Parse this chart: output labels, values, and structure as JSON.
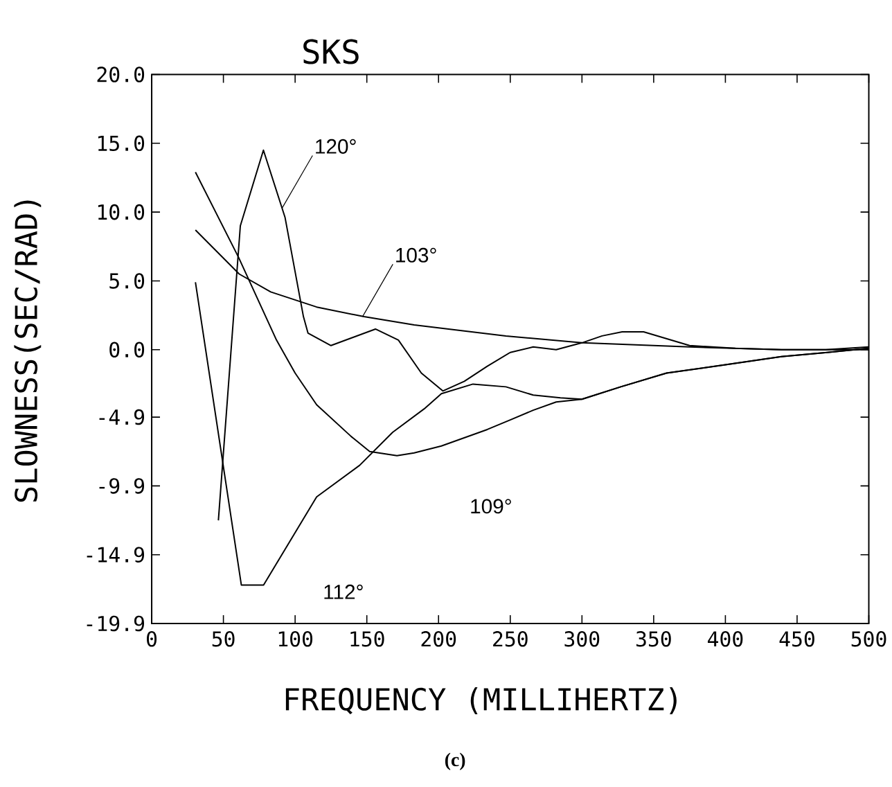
{
  "chart_data": {
    "type": "line",
    "title": "SKS",
    "xlabel": "FREQUENCY  (MILLIHERTZ)",
    "ylabel": "SLOWNESS(SEC/RAD)",
    "xlim": [
      0,
      500
    ],
    "ylim": [
      -19.9,
      20
    ],
    "xticks": [
      0,
      50,
      100,
      150,
      200,
      250,
      300,
      350,
      400,
      450,
      500
    ],
    "yticks": [
      {
        "value": 20,
        "label": "20.0"
      },
      {
        "value": 15,
        "label": "15.0"
      },
      {
        "value": 10,
        "label": "10.0"
      },
      {
        "value": 5,
        "label": "5.0"
      },
      {
        "value": 0,
        "label": "0.0"
      },
      {
        "value": -4.9,
        "label": "-4.9"
      },
      {
        "value": -9.9,
        "label": "-9.9"
      },
      {
        "value": -14.9,
        "label": "-14.9"
      },
      {
        "value": -19.9,
        "label": "-19.9"
      }
    ],
    "grid": false,
    "marker": "none",
    "line_style": "solid",
    "series": [
      {
        "color": "#000000",
        "x": [
          46.5,
          61.8,
          77.9,
          93,
          105.8,
          109,
          125,
          156,
          172,
          188,
          203,
          218,
          234,
          250,
          266,
          282,
          300,
          314,
          328,
          343,
          375,
          407,
          439,
          470,
          500
        ],
        "values": [
          -12.4,
          9.0,
          14.5,
          9.6,
          2.4,
          1.2,
          0.3,
          1.5,
          0.7,
          -1.7,
          -3.0,
          -2.3,
          -1.2,
          -0.2,
          0.2,
          0.0,
          0.5,
          1.0,
          1.3,
          1.3,
          0.3,
          0.1,
          0.0,
          0.0,
          0.2
        ]
      },
      {
        "color": "#000000",
        "x": [
          30.5,
          61,
          83,
          115,
          148,
          183,
          247,
          300,
          375,
          439,
          500
        ],
        "values": [
          8.7,
          5.5,
          4.2,
          3.1,
          2.4,
          1.8,
          1.0,
          0.5,
          0.2,
          0.0,
          0.0
        ]
      },
      {
        "color": "#000000",
        "x": [
          30.5,
          60.6,
          87,
          100,
          115,
          139,
          152,
          171,
          183,
          202,
          218,
          234,
          250,
          266,
          282,
          300,
          327,
          359,
          400,
          439,
          471,
          500
        ],
        "values": [
          12.9,
          6.7,
          0.7,
          -1.7,
          -4.0,
          -6.3,
          -7.4,
          -7.7,
          -7.5,
          -7.0,
          -6.4,
          -5.8,
          -5.1,
          -4.4,
          -3.8,
          -3.6,
          -2.7,
          -1.7,
          -1.1,
          -0.5,
          -0.2,
          0.1
        ]
      },
      {
        "color": "#000000",
        "x": [
          30.5,
          62.5,
          78,
          115,
          145,
          168,
          190,
          202,
          224,
          247,
          266,
          285,
          300,
          327,
          359,
          400,
          439,
          471,
          500
        ],
        "values": [
          4.9,
          -17.1,
          -17.1,
          -10.7,
          -8.4,
          -6.0,
          -4.3,
          -3.2,
          -2.5,
          -2.7,
          -3.3,
          -3.5,
          -3.6,
          -2.7,
          -1.7,
          -1.1,
          -0.5,
          -0.2,
          0.1
        ]
      }
    ],
    "annotations": [
      {
        "text": "120°",
        "x": 91,
        "y": 10.3
      },
      {
        "text": "103°",
        "x": 147,
        "y": 2.4
      },
      "109°",
      "112°",
      "(c)"
    ]
  }
}
